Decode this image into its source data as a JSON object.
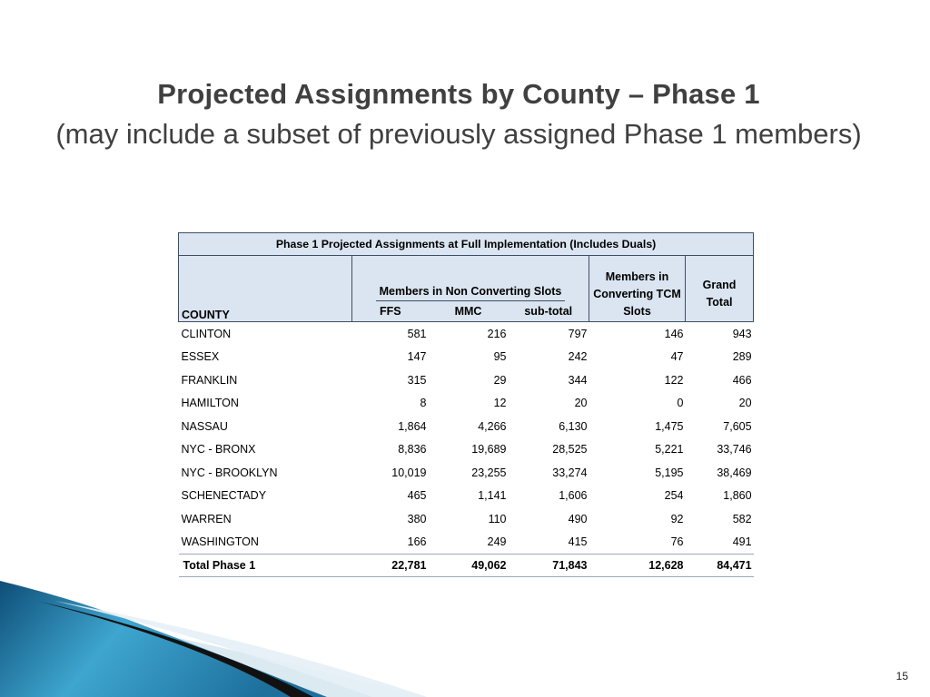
{
  "slide": {
    "title": "Projected Assignments by County – Phase 1",
    "subtitle": "(may include a subset of previously assigned Phase 1 members)",
    "page_number": "15"
  },
  "table": {
    "title": "Phase 1 Projected Assignments at Full Implementation (Includes Duals)",
    "group_header": "Members in Non Converting Slots",
    "headers": {
      "county": "COUNTY",
      "ffs": "FFS",
      "mmc": "MMC",
      "subtotal": "sub-total",
      "tcm": "Members in Converting TCM Slots",
      "grand": "Grand Total"
    },
    "rows": [
      {
        "county": "CLINTON",
        "ffs": "581",
        "mmc": "216",
        "subtotal": "797",
        "tcm": "146",
        "grand": "943"
      },
      {
        "county": "ESSEX",
        "ffs": "147",
        "mmc": "95",
        "subtotal": "242",
        "tcm": "47",
        "grand": "289"
      },
      {
        "county": "FRANKLIN",
        "ffs": "315",
        "mmc": "29",
        "subtotal": "344",
        "tcm": "122",
        "grand": "466"
      },
      {
        "county": "HAMILTON",
        "ffs": "8",
        "mmc": "12",
        "subtotal": "20",
        "tcm": "0",
        "grand": "20"
      },
      {
        "county": "NASSAU",
        "ffs": "1,864",
        "mmc": "4,266",
        "subtotal": "6,130",
        "tcm": "1,475",
        "grand": "7,605"
      },
      {
        "county": "NYC - BRONX",
        "ffs": "8,836",
        "mmc": "19,689",
        "subtotal": "28,525",
        "tcm": "5,221",
        "grand": "33,746"
      },
      {
        "county": "NYC - BROOKLYN",
        "ffs": "10,019",
        "mmc": "23,255",
        "subtotal": "33,274",
        "tcm": "5,195",
        "grand": "38,469"
      },
      {
        "county": "SCHENECTADY",
        "ffs": "465",
        "mmc": "1,141",
        "subtotal": "1,606",
        "tcm": "254",
        "grand": "1,860"
      },
      {
        "county": "WARREN",
        "ffs": "380",
        "mmc": "110",
        "subtotal": "490",
        "tcm": "92",
        "grand": "582"
      },
      {
        "county": "WASHINGTON",
        "ffs": "166",
        "mmc": "249",
        "subtotal": "415",
        "tcm": "76",
        "grand": "491"
      }
    ],
    "total": {
      "county": "Total Phase 1",
      "ffs": "22,781",
      "mmc": "49,062",
      "subtotal": "71,843",
      "tcm": "12,628",
      "grand": "84,471"
    }
  },
  "colors": {
    "header_fill": "#dbe5f1",
    "border": "#3d4f66",
    "title_text": "#404040",
    "decor_teal": "#2a8fb8",
    "decor_light": "#cfe3ee"
  }
}
